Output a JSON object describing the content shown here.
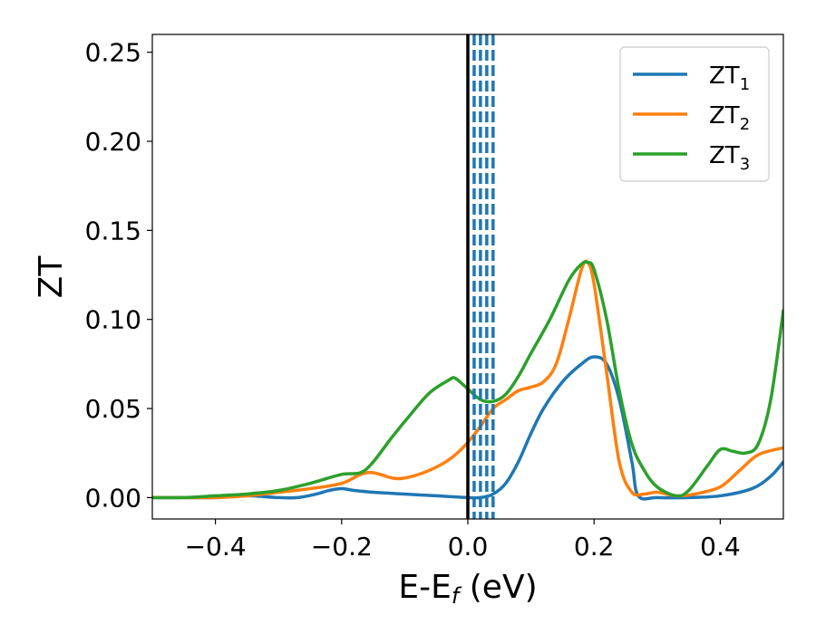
{
  "chart_data": {
    "type": "line",
    "xlabel_main": "E-E",
    "xlabel_sub": "f",
    "xlabel_unit": " (eV)",
    "ylabel": "ZT",
    "xlim": [
      -0.5,
      0.5
    ],
    "ylim": [
      -0.012,
      0.26
    ],
    "x_ticks": [
      -0.4,
      -0.2,
      0.0,
      0.2,
      0.4
    ],
    "x_tick_labels": [
      "−0.4",
      "−0.2",
      "0.0",
      "0.2",
      "0.4"
    ],
    "y_ticks": [
      0.0,
      0.05,
      0.1,
      0.15,
      0.2,
      0.25
    ],
    "y_tick_labels": [
      "0.00",
      "0.05",
      "0.10",
      "0.15",
      "0.20",
      "0.25"
    ],
    "grid": false,
    "legend_position": "top-right",
    "vertical_solid_line": {
      "x": 0.0,
      "color": "#000000"
    },
    "vertical_dashed_lines": {
      "x": [
        0.01,
        0.02,
        0.03,
        0.04
      ],
      "color": "#1f77b4"
    },
    "series": [
      {
        "name_main": "ZT",
        "name_sub": "1",
        "color": "#1f77b4",
        "x": [
          -0.5,
          -0.45,
          -0.4,
          -0.35,
          -0.3,
          -0.27,
          -0.24,
          -0.22,
          -0.2,
          -0.18,
          -0.15,
          -0.1,
          -0.05,
          0.0,
          0.02,
          0.04,
          0.06,
          0.08,
          0.1,
          0.12,
          0.15,
          0.18,
          0.2,
          0.22,
          0.24,
          0.26,
          0.27,
          0.3,
          0.35,
          0.4,
          0.45,
          0.48,
          0.5
        ],
        "y": [
          0.0,
          0.0,
          0.0,
          0.001,
          0.0,
          0.0,
          0.002,
          0.004,
          0.005,
          0.004,
          0.003,
          0.002,
          0.001,
          0.0,
          0.0,
          0.002,
          0.008,
          0.02,
          0.036,
          0.05,
          0.065,
          0.075,
          0.079,
          0.075,
          0.055,
          0.02,
          0.001,
          0.0,
          0.0,
          0.001,
          0.005,
          0.012,
          0.02
        ]
      },
      {
        "name_main": "ZT",
        "name_sub": "2",
        "color": "#ff7f0e",
        "x": [
          -0.5,
          -0.45,
          -0.4,
          -0.35,
          -0.3,
          -0.25,
          -0.2,
          -0.17,
          -0.15,
          -0.12,
          -0.1,
          -0.07,
          -0.04,
          -0.02,
          0.0,
          0.02,
          0.04,
          0.06,
          0.08,
          0.1,
          0.12,
          0.14,
          0.16,
          0.18,
          0.19,
          0.2,
          0.22,
          0.24,
          0.26,
          0.28,
          0.3,
          0.33,
          0.36,
          0.4,
          0.43,
          0.46,
          0.5
        ],
        "y": [
          0.0,
          0.0,
          0.0,
          0.001,
          0.003,
          0.005,
          0.008,
          0.013,
          0.014,
          0.011,
          0.011,
          0.014,
          0.019,
          0.024,
          0.031,
          0.04,
          0.05,
          0.055,
          0.06,
          0.062,
          0.065,
          0.075,
          0.1,
          0.128,
          0.132,
          0.12,
          0.07,
          0.02,
          0.003,
          0.002,
          0.003,
          0.001,
          0.002,
          0.006,
          0.015,
          0.024,
          0.028
        ]
      },
      {
        "name_main": "ZT",
        "name_sub": "3",
        "color": "#2ca02c",
        "x": [
          -0.5,
          -0.45,
          -0.4,
          -0.35,
          -0.3,
          -0.25,
          -0.2,
          -0.17,
          -0.15,
          -0.12,
          -0.09,
          -0.06,
          -0.03,
          -0.02,
          0.0,
          0.02,
          0.04,
          0.06,
          0.08,
          0.1,
          0.13,
          0.16,
          0.18,
          0.19,
          0.2,
          0.22,
          0.24,
          0.26,
          0.28,
          0.3,
          0.33,
          0.35,
          0.38,
          0.4,
          0.42,
          0.44,
          0.46,
          0.48,
          0.5
        ],
        "y": [
          0.0,
          0.0,
          0.001,
          0.002,
          0.004,
          0.008,
          0.013,
          0.014,
          0.02,
          0.034,
          0.047,
          0.059,
          0.066,
          0.067,
          0.061,
          0.055,
          0.054,
          0.058,
          0.068,
          0.081,
          0.1,
          0.122,
          0.131,
          0.132,
          0.128,
          0.1,
          0.06,
          0.03,
          0.015,
          0.006,
          0.001,
          0.004,
          0.018,
          0.027,
          0.026,
          0.025,
          0.03,
          0.055,
          0.105
        ]
      }
    ]
  }
}
